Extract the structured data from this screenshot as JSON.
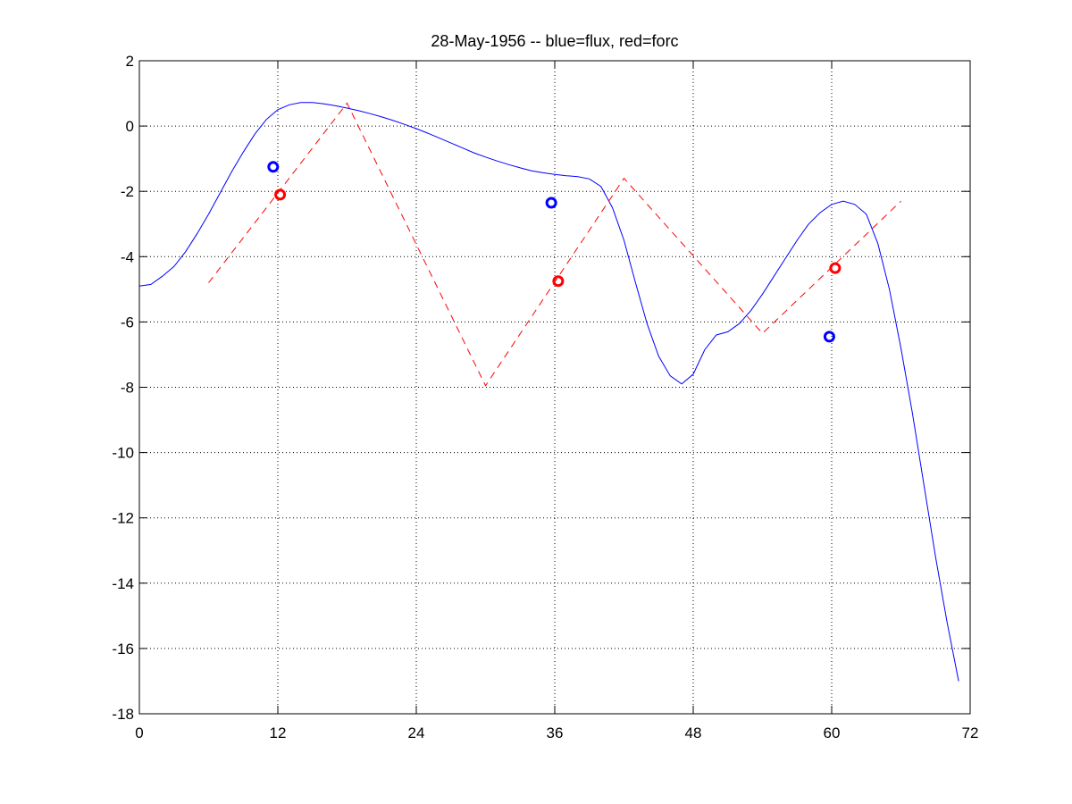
{
  "chart_data": {
    "type": "line",
    "title": "28-May-1956 -- blue=flux, red=forc",
    "xlabel": "",
    "ylabel": "",
    "xlim": [
      0,
      72
    ],
    "ylim": [
      -18,
      2
    ],
    "xticks": [
      0,
      12,
      24,
      36,
      48,
      60,
      72
    ],
    "yticks": [
      2,
      0,
      -2,
      -4,
      -6,
      -8,
      -10,
      -12,
      -14,
      -16,
      -18
    ],
    "xtick_labels": [
      "0",
      "12",
      "24",
      "36",
      "48",
      "60",
      "72"
    ],
    "ytick_labels": [
      "2",
      "0",
      "-2",
      "-4",
      "-6",
      "-8",
      "-10",
      "-12",
      "-14",
      "-16",
      "-18"
    ],
    "grid": true,
    "grid_style": "dotted",
    "series": [
      {
        "style": "solid-line",
        "color": "#0000ff",
        "x": [
          0,
          1,
          2,
          3,
          4,
          5,
          6,
          7,
          8,
          9,
          10,
          11,
          12,
          13,
          14,
          15,
          16,
          17,
          18,
          19,
          20,
          21,
          22,
          23,
          24,
          25,
          26,
          27,
          28,
          29,
          30,
          31,
          32,
          33,
          34,
          35,
          36,
          37,
          38,
          39,
          40,
          41,
          42,
          43,
          44,
          45,
          46,
          47,
          48,
          49,
          50,
          51,
          52,
          53,
          54,
          55,
          56,
          57,
          58,
          59,
          60,
          61,
          62,
          63,
          64,
          65,
          66,
          67,
          68,
          69,
          70,
          71
        ],
        "y": [
          -4.9,
          -4.85,
          -4.6,
          -4.3,
          -3.85,
          -3.3,
          -2.7,
          -2.05,
          -1.4,
          -0.8,
          -0.25,
          0.2,
          0.5,
          0.65,
          0.72,
          0.72,
          0.68,
          0.62,
          0.55,
          0.47,
          0.38,
          0.28,
          0.17,
          0.05,
          -0.08,
          -0.22,
          -0.37,
          -0.52,
          -0.67,
          -0.82,
          -0.95,
          -1.07,
          -1.18,
          -1.28,
          -1.37,
          -1.43,
          -1.48,
          -1.52,
          -1.55,
          -1.62,
          -1.85,
          -2.5,
          -3.5,
          -4.8,
          -6.05,
          -7.05,
          -7.65,
          -7.9,
          -7.6,
          -6.85,
          -6.4,
          -6.3,
          -6.05,
          -5.65,
          -5.15,
          -4.6,
          -4.05,
          -3.5,
          -3.0,
          -2.65,
          -2.4,
          -2.3,
          -2.4,
          -2.7,
          -3.6,
          -5.0,
          -6.8,
          -8.8,
          -11.0,
          -13.2,
          -15.2,
          -17.0
        ]
      },
      {
        "style": "dashed-line",
        "color": "#ff0000",
        "x": [
          6,
          18,
          30,
          42,
          54,
          66
        ],
        "y": [
          -4.8,
          0.7,
          -7.95,
          -1.6,
          -6.35,
          -2.3
        ]
      },
      {
        "style": "circle-markers",
        "color": "#0000ff",
        "x": [
          11.6,
          35.7,
          59.8
        ],
        "y": [
          -1.25,
          -2.35,
          -6.45
        ]
      },
      {
        "style": "circle-markers",
        "color": "#ff0000",
        "x": [
          12.2,
          36.3,
          60.3
        ],
        "y": [
          -2.1,
          -4.75,
          -4.35
        ]
      }
    ]
  }
}
